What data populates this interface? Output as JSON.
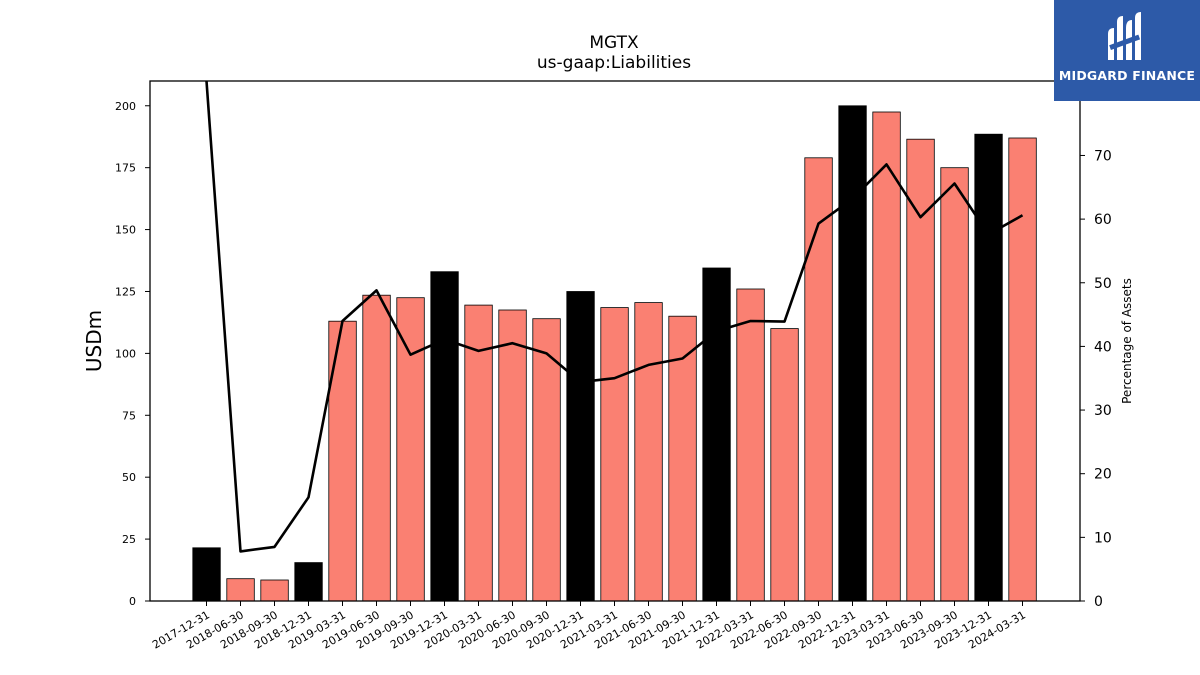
{
  "chart_data": {
    "type": "bar",
    "title": "MGTX",
    "subtitle": "us-gaap:Liabilities",
    "ylabel": "USDm",
    "y2label": "Percentage of Assets",
    "ylim": [
      0,
      210
    ],
    "y2lim": [
      0,
      81.7
    ],
    "yticks": [
      0,
      25,
      50,
      75,
      100,
      125,
      150,
      175,
      200
    ],
    "y2ticks": [
      0,
      10,
      20,
      30,
      40,
      50,
      60,
      70
    ],
    "categories": [
      "2017-12-31",
      "2018-06-30",
      "2018-09-30",
      "2018-12-31",
      "2019-03-31",
      "2019-06-30",
      "2019-09-30",
      "2019-12-31",
      "2020-03-31",
      "2020-06-30",
      "2020-09-30",
      "2020-12-31",
      "2021-03-31",
      "2021-06-30",
      "2021-09-30",
      "2021-12-31",
      "2022-03-31",
      "2022-06-30",
      "2022-09-30",
      "2022-12-31",
      "2023-03-31",
      "2023-06-30",
      "2023-09-30",
      "2023-12-31",
      "2024-03-31"
    ],
    "series": [
      {
        "type": "bar",
        "values": [
          21.5,
          9,
          8.5,
          15.5,
          113,
          123.5,
          122.5,
          133,
          119.5,
          117.5,
          114,
          125,
          118.5,
          120.5,
          115,
          134.5,
          126,
          110,
          179,
          200,
          197.5,
          186.5,
          175,
          188.5,
          187
        ],
        "colors": [
          "#000000",
          "#fa8072",
          "#fa8072",
          "#000000",
          "#fa8072",
          "#fa8072",
          "#fa8072",
          "#000000",
          "#fa8072",
          "#fa8072",
          "#fa8072",
          "#000000",
          "#fa8072",
          "#fa8072",
          "#fa8072",
          "#000000",
          "#fa8072",
          "#fa8072",
          "#fa8072",
          "#000000",
          "#fa8072",
          "#fa8072",
          "#fa8072",
          "#000000",
          "#fa8072"
        ]
      },
      {
        "type": "line",
        "axis": "right",
        "color": "#000000",
        "values": [
          82,
          7.8,
          8.5,
          16.3,
          44,
          48.8,
          38.7,
          41.1,
          39.3,
          40.5,
          38.9,
          34.4,
          35,
          37.1,
          38.1,
          42.4,
          44,
          43.9,
          59.3,
          63.2,
          68.6,
          60.3,
          65.6,
          57.6,
          60.6
        ]
      }
    ]
  },
  "logo": {
    "text": "MIDGARD FINANCE",
    "bg_color": "#2d5aa8"
  }
}
